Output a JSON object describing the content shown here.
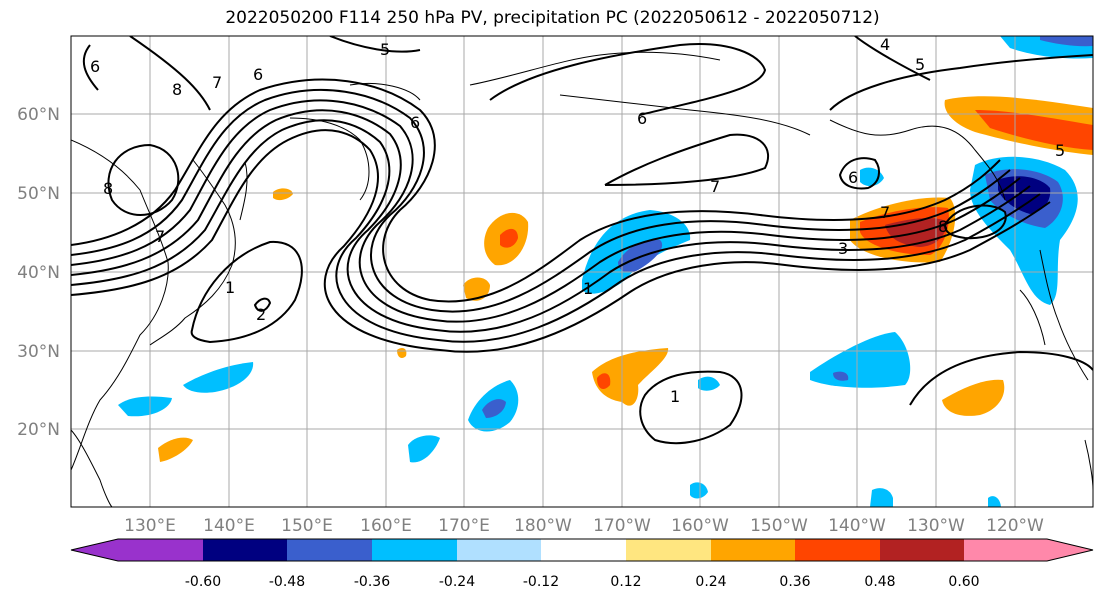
{
  "title": "2022050200 F114 250 hPa PV, precipitation PC (2022050612 - 2022050712)",
  "lat_labels": [
    "60°N",
    "50°N",
    "40°N",
    "30°N",
    "20°N"
  ],
  "lon_labels": [
    "130°E",
    "140°E",
    "150°E",
    "160°E",
    "170°E",
    "180°W",
    "170°W",
    "160°W",
    "150°W",
    "140°W",
    "130°W",
    "120°W"
  ],
  "colorbar": {
    "tick_labels": [
      "-0.60",
      "-0.48",
      "-0.36",
      "-0.24",
      "-0.12",
      "0.12",
      "0.24",
      "0.36",
      "0.48",
      "0.60"
    ],
    "colors": [
      "#9932cc",
      "#000080",
      "#3a5fcd",
      "#00bfff",
      "#b0e0ff",
      "#ffffff",
      "#ffe680",
      "#ffa500",
      "#ff4500",
      "#b22222",
      "#ff88aa"
    ]
  },
  "contour_labels": [
    "6",
    "8",
    "7",
    "6",
    "5",
    "6",
    "7",
    "8",
    "6",
    "7",
    "1",
    "2",
    "1",
    "3",
    "5",
    "4",
    "8",
    "1",
    "7",
    "6",
    "5"
  ]
}
